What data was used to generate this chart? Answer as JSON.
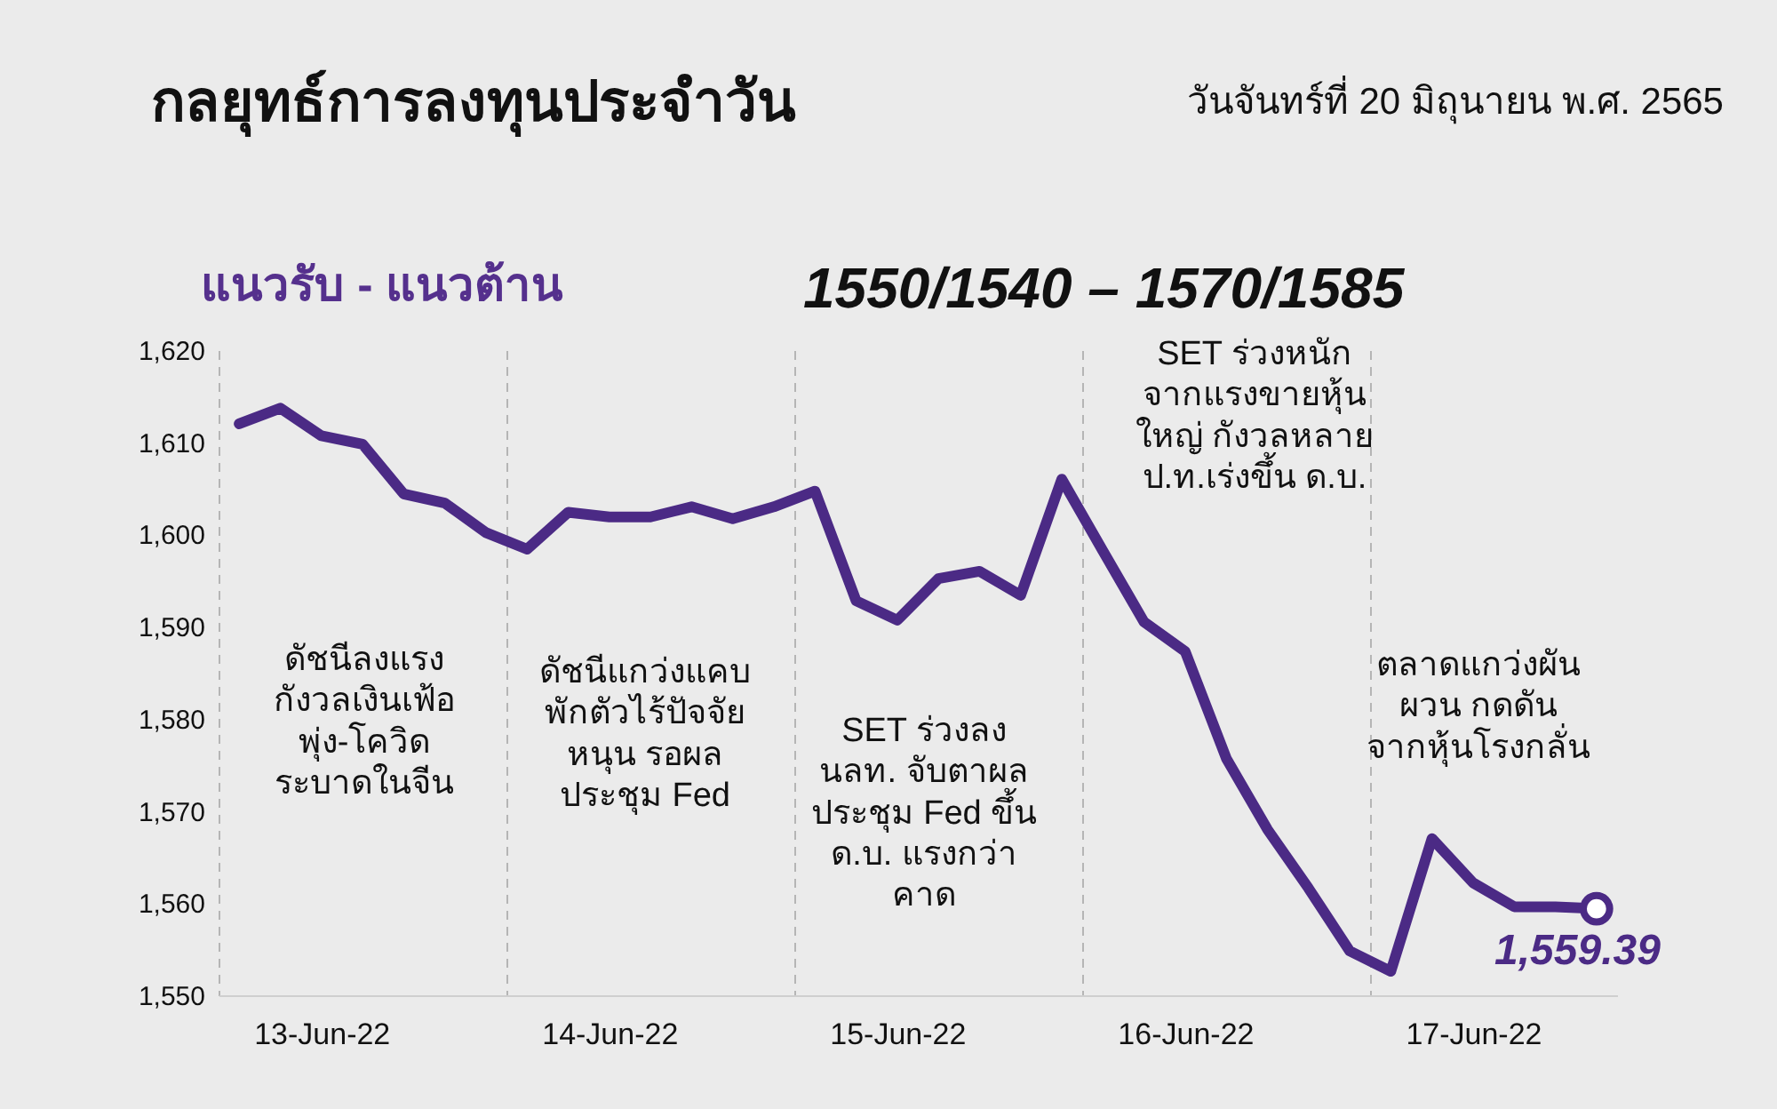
{
  "chart_data": {
    "type": "line",
    "title": "กลยุทธ์การลงทุนประจำวัน",
    "subtitle": "วันจันทร์ที่ 20 มิถุนายน พ.ศ. 2565",
    "annotations": [
      "แนวรับ - แนวต้าน",
      "1550/1540  –  1570/1585",
      "ดัชนีลงแรง\nกังวลเงินเฟ้อ\nพุ่ง-โควิด\nระบาดในจีน",
      "ดัชนีแกว่งแคบ\nพักตัวไร้ปัจจัย\nหนุน รอผล\nประชุม Fed",
      "SET ร่วงลง\nนลท. จับตาผล\nประชุม Fed ขึ้น\nด.บ. แรงกว่า\nคาด",
      "SET ร่วงหนัก\nจากแรงขายหุ้น\nใหญ่ กังวลหลาย\nป.ท.เร่งขึ้น ด.บ.",
      "ตลาดแกว่งผัน\nผวน กดดัน\nจากหุ้นโรงกลั่น"
    ],
    "categories": [
      null,
      null,
      "13-Jun-22",
      null,
      null,
      null,
      null,
      null,
      null,
      "14-Jun-22",
      null,
      null,
      null,
      null,
      null,
      null,
      "15-Jun-22",
      null,
      null,
      null,
      null,
      null,
      null,
      "16-Jun-22",
      null,
      null,
      null,
      null,
      null,
      null,
      "17-Jun-22",
      null,
      null,
      null
    ],
    "ylim": [
      1550,
      1620
    ],
    "yticks": [
      {
        "value": 1550,
        "label": "1,550"
      },
      {
        "value": 1560,
        "label": "1,560"
      },
      {
        "value": 1570,
        "label": "1,570"
      },
      {
        "value": 1580,
        "label": "1,580"
      },
      {
        "value": 1590,
        "label": "1,590"
      },
      {
        "value": 1600,
        "label": "1,600"
      },
      {
        "value": 1610,
        "label": "1,610"
      },
      {
        "value": 1620,
        "label": "1,620"
      }
    ],
    "grid": "x",
    "series": [
      {
        "color": "#4b2a85",
        "values": [
          1612.0,
          1613.7,
          1610.7,
          1609.8,
          1604.4,
          1603.4,
          1600.2,
          1598.4,
          1602.4,
          1601.9,
          1601.9,
          1603.0,
          1601.7,
          1603.0,
          1604.7,
          1592.8,
          1590.7,
          1595.2,
          1596.0,
          1593.4,
          1606.0,
          1598.2,
          1590.5,
          1587.3,
          1575.7,
          1568.0,
          1561.6,
          1554.8,
          1552.6,
          1567.0,
          1562.2,
          1559.6,
          1559.6,
          1559.4
        ]
      },
      {
        "type": "scatter",
        "color": "#4b2a85",
        "marker": "circle",
        "values": [
          null,
          null,
          null,
          null,
          null,
          null,
          null,
          null,
          null,
          null,
          null,
          null,
          null,
          null,
          null,
          null,
          null,
          null,
          null,
          null,
          null,
          null,
          null,
          null,
          null,
          null,
          null,
          null,
          null,
          null,
          null,
          null,
          null,
          1559.39
        ],
        "value_labels": [
          null,
          null,
          null,
          null,
          null,
          null,
          null,
          null,
          null,
          null,
          null,
          null,
          null,
          null,
          null,
          null,
          null,
          null,
          null,
          null,
          null,
          null,
          null,
          null,
          null,
          null,
          null,
          null,
          null,
          null,
          null,
          null,
          null,
          "1,559.39"
        ]
      }
    ]
  }
}
